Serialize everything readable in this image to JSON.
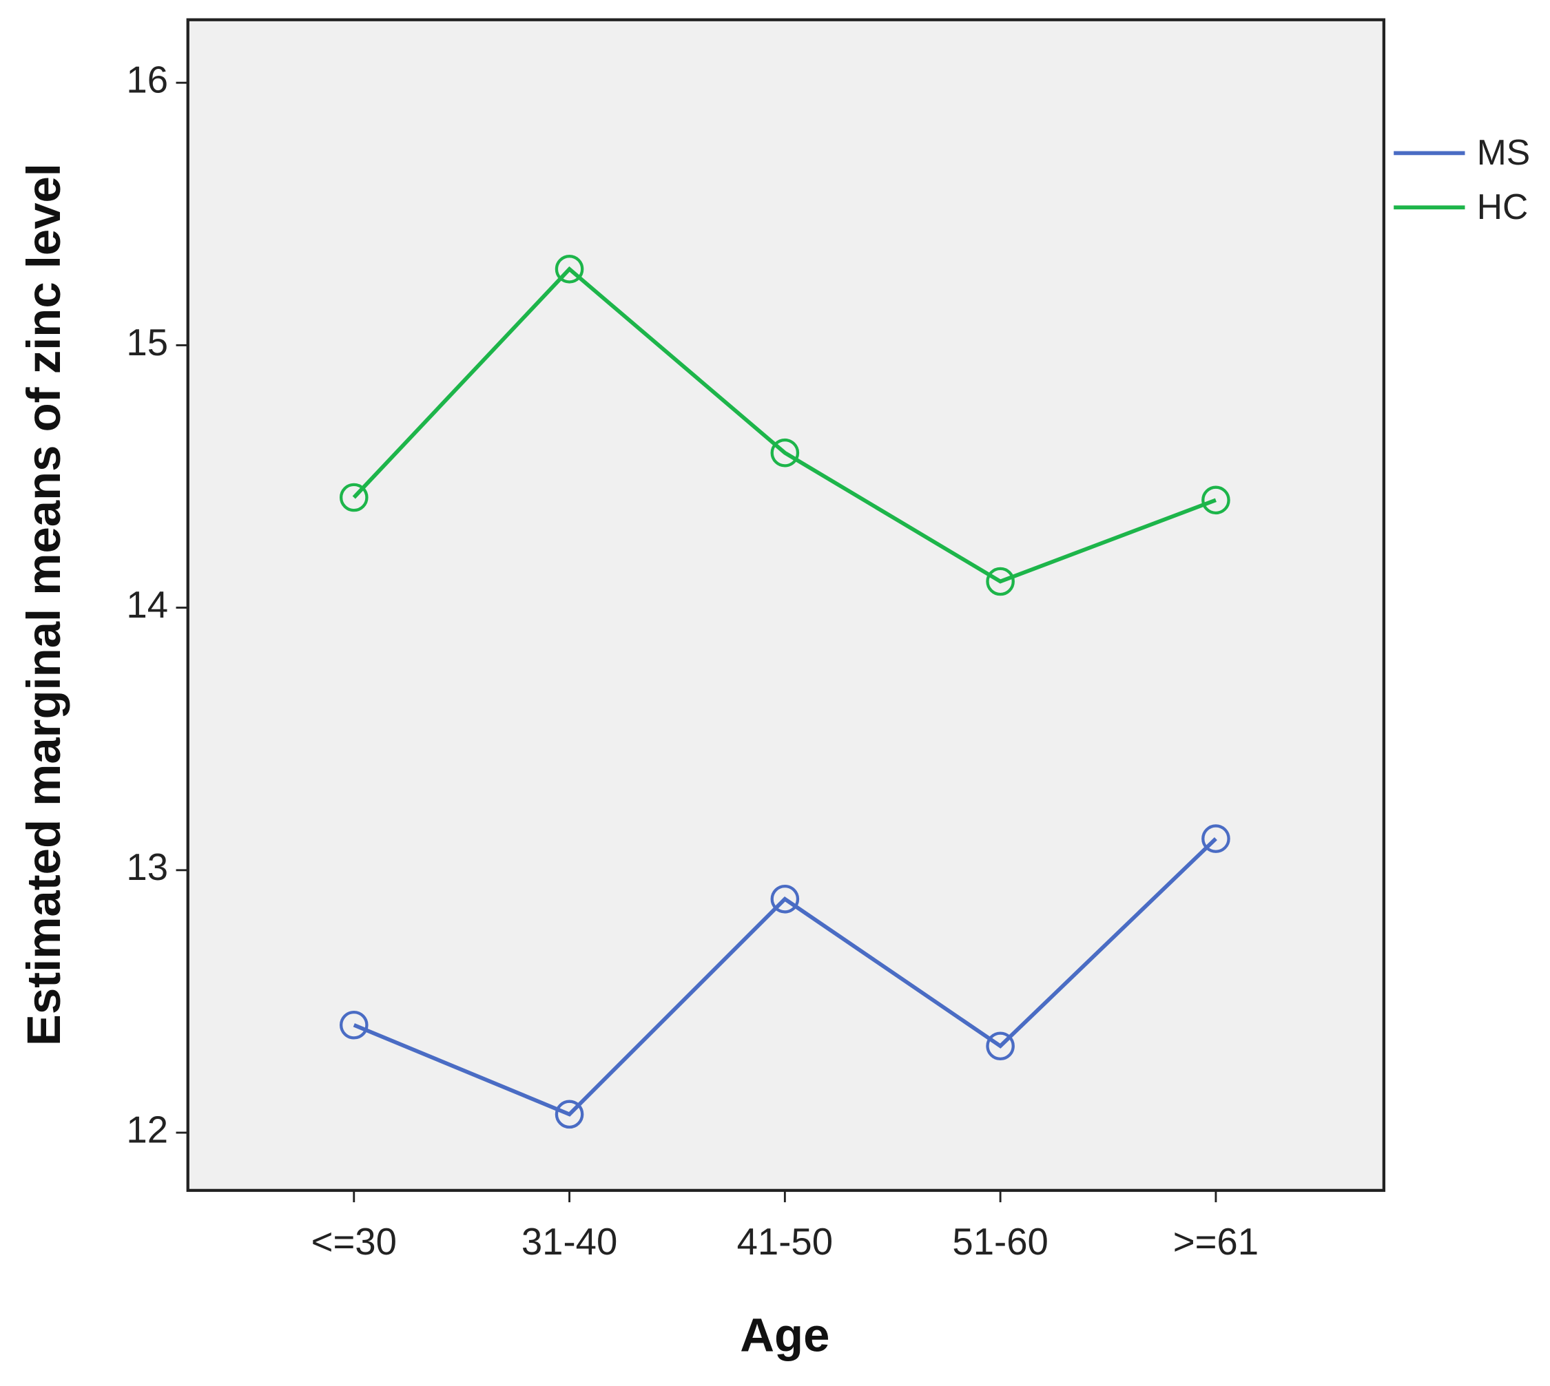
{
  "chart_data": {
    "type": "line",
    "x_label": "Age",
    "y_label": "Estimated marginal means of zinc level",
    "categories": [
      "<=30",
      "31-40",
      "41-50",
      "51-60",
      ">=61"
    ],
    "series": [
      {
        "name": "MS",
        "color": "#4a6cc4",
        "values": [
          12.41,
          12.07,
          12.89,
          12.33,
          13.12
        ]
      },
      {
        "name": "HC",
        "color": "#1db54a",
        "values": [
          14.42,
          15.29,
          14.59,
          14.1,
          14.41
        ]
      }
    ],
    "ylim": [
      11.78,
      16.24
    ],
    "yticks": [
      12,
      13,
      14,
      15,
      16
    ],
    "grid": false,
    "legend": "right",
    "background": "#f0f0f0"
  }
}
